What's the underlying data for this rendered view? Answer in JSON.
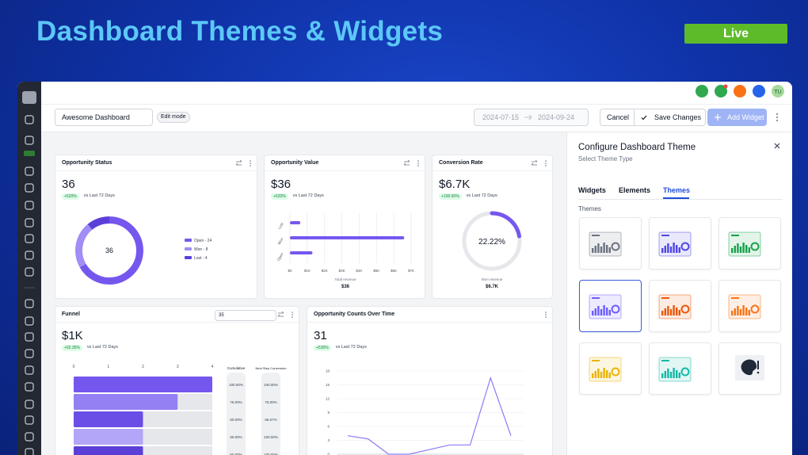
{
  "header": {
    "title": "Dashboard Themes & Widgets",
    "status": "Live"
  },
  "user": {
    "initials": "TU"
  },
  "toolbar": {
    "dashboard_name": "Awesome Dashboard",
    "mode": "Edit mode",
    "date_from": "2024-07-15",
    "date_to": "2024-09-24",
    "cancel": "Cancel",
    "save": "Save Changes",
    "add": "Add Widget"
  },
  "panel": {
    "title": "Configure Dashboard Theme",
    "subtitle": "Select Theme Type",
    "tabs": [
      "Widgets",
      "Elements",
      "Themes"
    ],
    "active_tab": 2,
    "section": "Themes",
    "themes": [
      "#6b7280",
      "#4f46e5",
      "#16a34a",
      "#6d5dfc",
      "#ea580c",
      "#f97316",
      "#eab308",
      "#14b8a6"
    ],
    "selected_theme": 3
  },
  "widgets": [
    {
      "title": "Opportunity Status",
      "value": "36",
      "change": "+520%",
      "compare": "vs Last 72 Days",
      "chart": {
        "type": "donut",
        "center_label": "36",
        "categories": [
          "Open - 24",
          "Won - 8",
          "Lost - 4"
        ],
        "values": [
          24,
          8,
          4
        ],
        "colors": [
          "#7657ee",
          "#a28cf6",
          "#5c3fd9"
        ]
      }
    },
    {
      "title": "Opportunity Value",
      "value": "$36",
      "change": "+620%",
      "compare": "vs Last 72 Days",
      "chart": {
        "type": "hbar",
        "categories": [
          "Lost",
          "Won",
          "Open"
        ],
        "values": [
          600,
          6600,
          1300
        ],
        "color": "#7657ee",
        "xlim": [
          0,
          7000
        ],
        "xticks": [
          {
            "value": 0,
            "label": "$0"
          },
          {
            "value": 1000,
            "label": "$1K"
          },
          {
            "value": 2000,
            "label": "$2K"
          },
          {
            "value": 3000,
            "label": "$3K"
          },
          {
            "value": 4000,
            "label": "$4K"
          },
          {
            "value": 5000,
            "label": "$5K"
          },
          {
            "value": 6000,
            "label": "$6K"
          },
          {
            "value": 7000,
            "label": "$7K"
          }
        ],
        "xlabel": "Total revenue",
        "total": "$36"
      }
    },
    {
      "title": "Conversion Rate",
      "value": "$6.7K",
      "change": "+100.00%",
      "compare": "vs Last 72 Days",
      "chart": {
        "type": "gauge",
        "values": [
          22.22
        ],
        "value_labels": [
          "22.22%"
        ],
        "ylim": [
          0,
          100
        ],
        "color": "#7657ee",
        "caption": "Won revenue",
        "total": "$6.7K"
      }
    },
    {
      "title": "Funnel",
      "filter": "35",
      "value": "$1K",
      "change": "+92.35%",
      "compare": "vs Last 72 Days",
      "chart": {
        "type": "funnel",
        "values": [
          4,
          3,
          2,
          2,
          2
        ],
        "xlim": [
          0,
          4
        ],
        "xticks": [
          0,
          1,
          2,
          3,
          4
        ],
        "colors": [
          "#7657ee",
          "#9580f3",
          "#6a4ee6",
          "#b3a5f7",
          "#5b3fd6"
        ],
        "columns": [
          "Cumulative",
          "Next Step Conversion"
        ],
        "cumulative": [
          "100.00%",
          "75.00%",
          "50.00%",
          "50.00%",
          "50.00%"
        ],
        "next_step": [
          "100.00%",
          "75.00%",
          "66.67%",
          "100.00%",
          "100.00%"
        ]
      }
    },
    {
      "title": "Opportunity Counts Over Time",
      "value": "31",
      "change": "+530%",
      "compare": "vs Last 72 Days",
      "chart": {
        "type": "line",
        "categories": [
          null,
          null,
          null,
          null,
          null,
          null,
          null,
          null,
          null
        ],
        "values": [
          4,
          3.3,
          0,
          0,
          1,
          2,
          2,
          16.5,
          4
        ],
        "color": "#8b7cf6",
        "ylim": [
          0,
          18
        ],
        "yticks": [
          0,
          3,
          6,
          9,
          12,
          15,
          18
        ]
      }
    }
  ]
}
